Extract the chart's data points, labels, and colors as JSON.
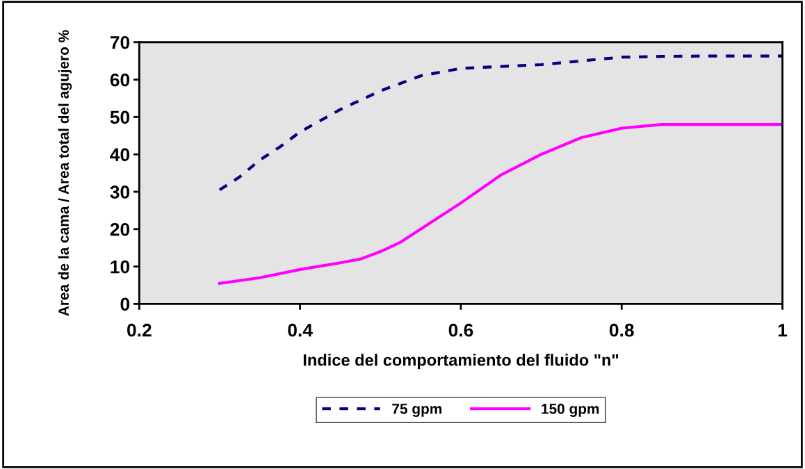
{
  "chart_data": {
    "type": "line",
    "xlabel": "Indice del comportamiento del fluido \"n\"",
    "ylabel": "Area de la cama / Area total del agujero %",
    "xlim": [
      0.2,
      1
    ],
    "xticks": [
      0.2,
      0.4,
      0.6,
      0.8,
      1
    ],
    "ylim": [
      0,
      70
    ],
    "yticks": [
      0,
      10,
      20,
      30,
      40,
      50,
      60,
      70
    ],
    "grid": false,
    "legend": "bottom",
    "series": [
      {
        "name": "75 gpm",
        "color": "#000080",
        "line_style": "dashed",
        "x": [
          0.3,
          0.325,
          0.35,
          0.375,
          0.4,
          0.425,
          0.45,
          0.475,
          0.5,
          0.525,
          0.55,
          0.6,
          0.65,
          0.7,
          0.75,
          0.8,
          0.85,
          0.9,
          1.0
        ],
        "values": [
          30.5,
          34,
          38.5,
          42,
          46,
          49,
          52,
          54.5,
          57,
          59,
          61,
          63,
          63.5,
          64,
          65,
          66,
          66.2,
          66.3,
          66.3
        ]
      },
      {
        "name": "150 gpm",
        "color": "#ff00ff",
        "line_style": "solid",
        "x": [
          0.3,
          0.35,
          0.4,
          0.45,
          0.475,
          0.5,
          0.525,
          0.55,
          0.6,
          0.65,
          0.7,
          0.75,
          0.8,
          0.85,
          1.0
        ],
        "values": [
          5.5,
          7,
          9.2,
          11,
          12,
          14,
          16.5,
          20,
          27,
          34.5,
          40,
          44.5,
          47,
          48,
          48
        ]
      }
    ]
  }
}
